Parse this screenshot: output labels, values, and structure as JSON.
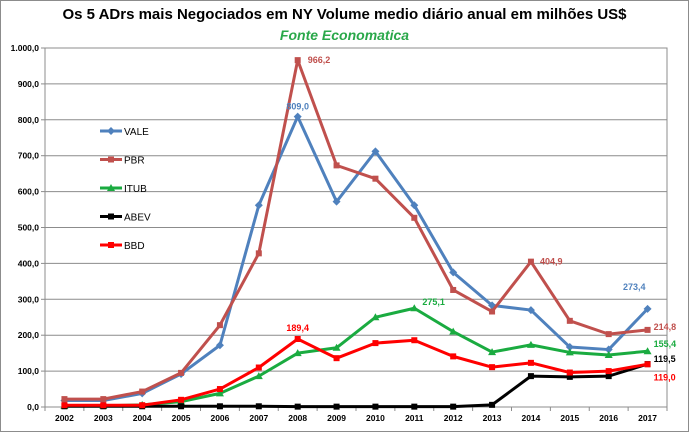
{
  "chart_data": {
    "type": "line",
    "title": "Os 5 ADrs mais Negociados em NY  Volume medio diário anual em milhões US$",
    "subtitle": "Fonte Economatica",
    "categories": [
      "2002",
      "2003",
      "2004",
      "2005",
      "2006",
      "2007",
      "2008",
      "2009",
      "2010",
      "2011",
      "2012",
      "2013",
      "2014",
      "2015",
      "2016",
      "2017"
    ],
    "ylim": [
      0,
      1000
    ],
    "ytick_step": 100,
    "ytick_labels": [
      "0,0",
      "100,0",
      "200,0",
      "300,0",
      "400,0",
      "500,0",
      "600,0",
      "700,0",
      "800,0",
      "900,0",
      "1.000,0"
    ],
    "grid": true,
    "legend_position": "left",
    "series": [
      {
        "name": "VALE",
        "color": "#4f81bd",
        "marker": "diamond",
        "values": [
          18,
          18,
          38,
          92,
          172,
          562,
          809,
          572,
          712,
          562,
          375,
          283,
          270,
          167,
          160,
          273.4
        ]
      },
      {
        "name": "PBR",
        "color": "#c0504d",
        "marker": "square",
        "values": [
          22,
          22,
          43,
          95,
          228,
          428,
          966.2,
          673,
          636,
          527,
          326,
          266,
          404.9,
          240,
          203,
          214.8
        ]
      },
      {
        "name": "ITUB",
        "color": "#1aab40",
        "marker": "triangle",
        "values": [
          3,
          3,
          6,
          15,
          38,
          86,
          150,
          165,
          250,
          275.1,
          210,
          153,
          173,
          152,
          145,
          155.4
        ]
      },
      {
        "name": "ABEV",
        "color": "#000000",
        "marker": "square",
        "values": [
          2,
          2,
          2,
          2,
          2,
          2,
          1,
          1,
          1,
          1,
          1,
          6,
          86,
          84,
          86,
          119.5
        ]
      },
      {
        "name": "BBD",
        "color": "#ff0000",
        "marker": "square",
        "values": [
          5,
          5,
          5,
          20,
          50,
          110,
          189.4,
          136,
          178,
          186,
          141,
          111,
          123,
          96,
          100,
          119.0
        ]
      }
    ],
    "annotations": [
      {
        "series": "VALE",
        "index": 6,
        "text": "809,0",
        "color": "#4f81bd"
      },
      {
        "series": "PBR",
        "index": 6,
        "text": "966,2",
        "color": "#c0504d"
      },
      {
        "series": "BBD",
        "index": 6,
        "text": "189,4",
        "color": "#ff0000"
      },
      {
        "series": "ITUB",
        "index": 9,
        "text": "275,1",
        "color": "#1aab40"
      },
      {
        "series": "PBR",
        "index": 12,
        "text": "404,9",
        "color": "#c0504d"
      },
      {
        "series": "VALE",
        "index": 15,
        "text": "273,4",
        "color": "#4f81bd"
      },
      {
        "series": "PBR",
        "index": 15,
        "text": "214,8",
        "color": "#c0504d"
      },
      {
        "series": "ITUB",
        "index": 15,
        "text": "155,4",
        "color": "#1aab40"
      },
      {
        "series": "ABEV",
        "index": 15,
        "text": "119,5",
        "color": "#000000"
      },
      {
        "series": "BBD",
        "index": 15,
        "text": "119,0",
        "color": "#ff0000"
      }
    ]
  }
}
